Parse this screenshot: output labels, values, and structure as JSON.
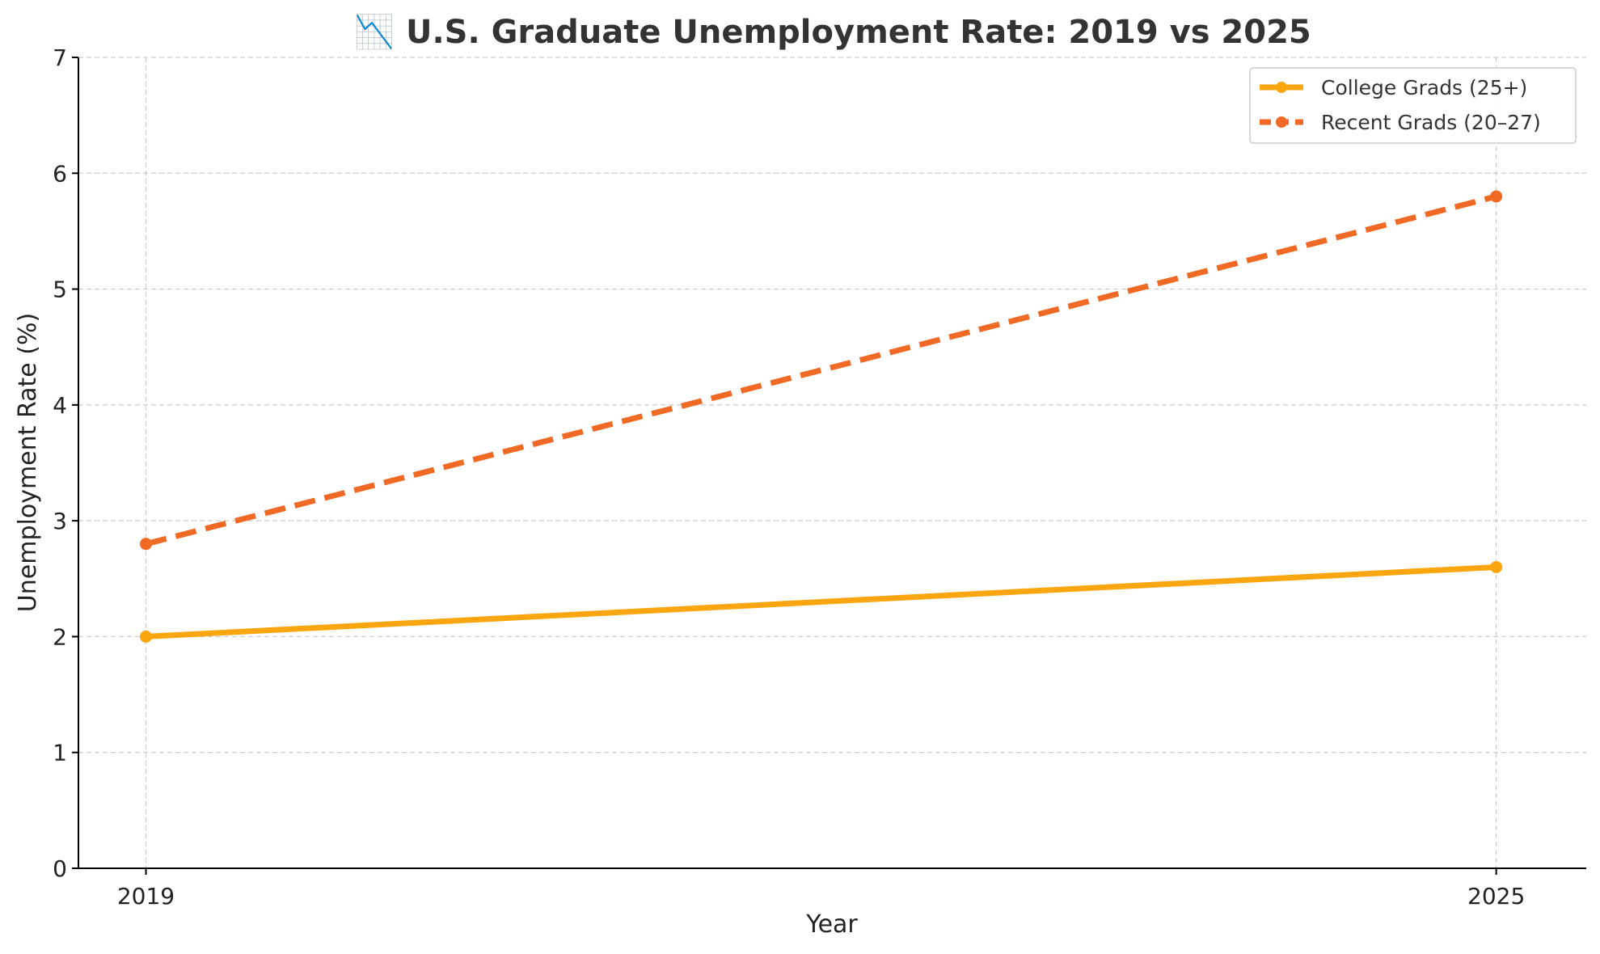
{
  "chart_data": {
    "type": "line",
    "title": "📉 U.S. Graduate Unemployment Rate: 2019 vs 2025",
    "xlabel": "Year",
    "ylabel": "Unemployment Rate (%)",
    "x": [
      2019,
      2025
    ],
    "x_tick_labels": [
      "2019",
      "2025"
    ],
    "ylim": [
      0,
      7
    ],
    "y_ticks": [
      0,
      1,
      2,
      3,
      4,
      5,
      6,
      7
    ],
    "grid": true,
    "legend_position": "top-right",
    "series": [
      {
        "name": "College Grads (25+)",
        "values": [
          2.0,
          2.6
        ],
        "color": "#FBA50F",
        "line_style": "solid",
        "marker": "circle"
      },
      {
        "name": "Recent Grads (20–27)",
        "values": [
          2.8,
          5.8
        ],
        "color": "#F06A25",
        "line_style": "dashed",
        "marker": "circle"
      }
    ]
  }
}
